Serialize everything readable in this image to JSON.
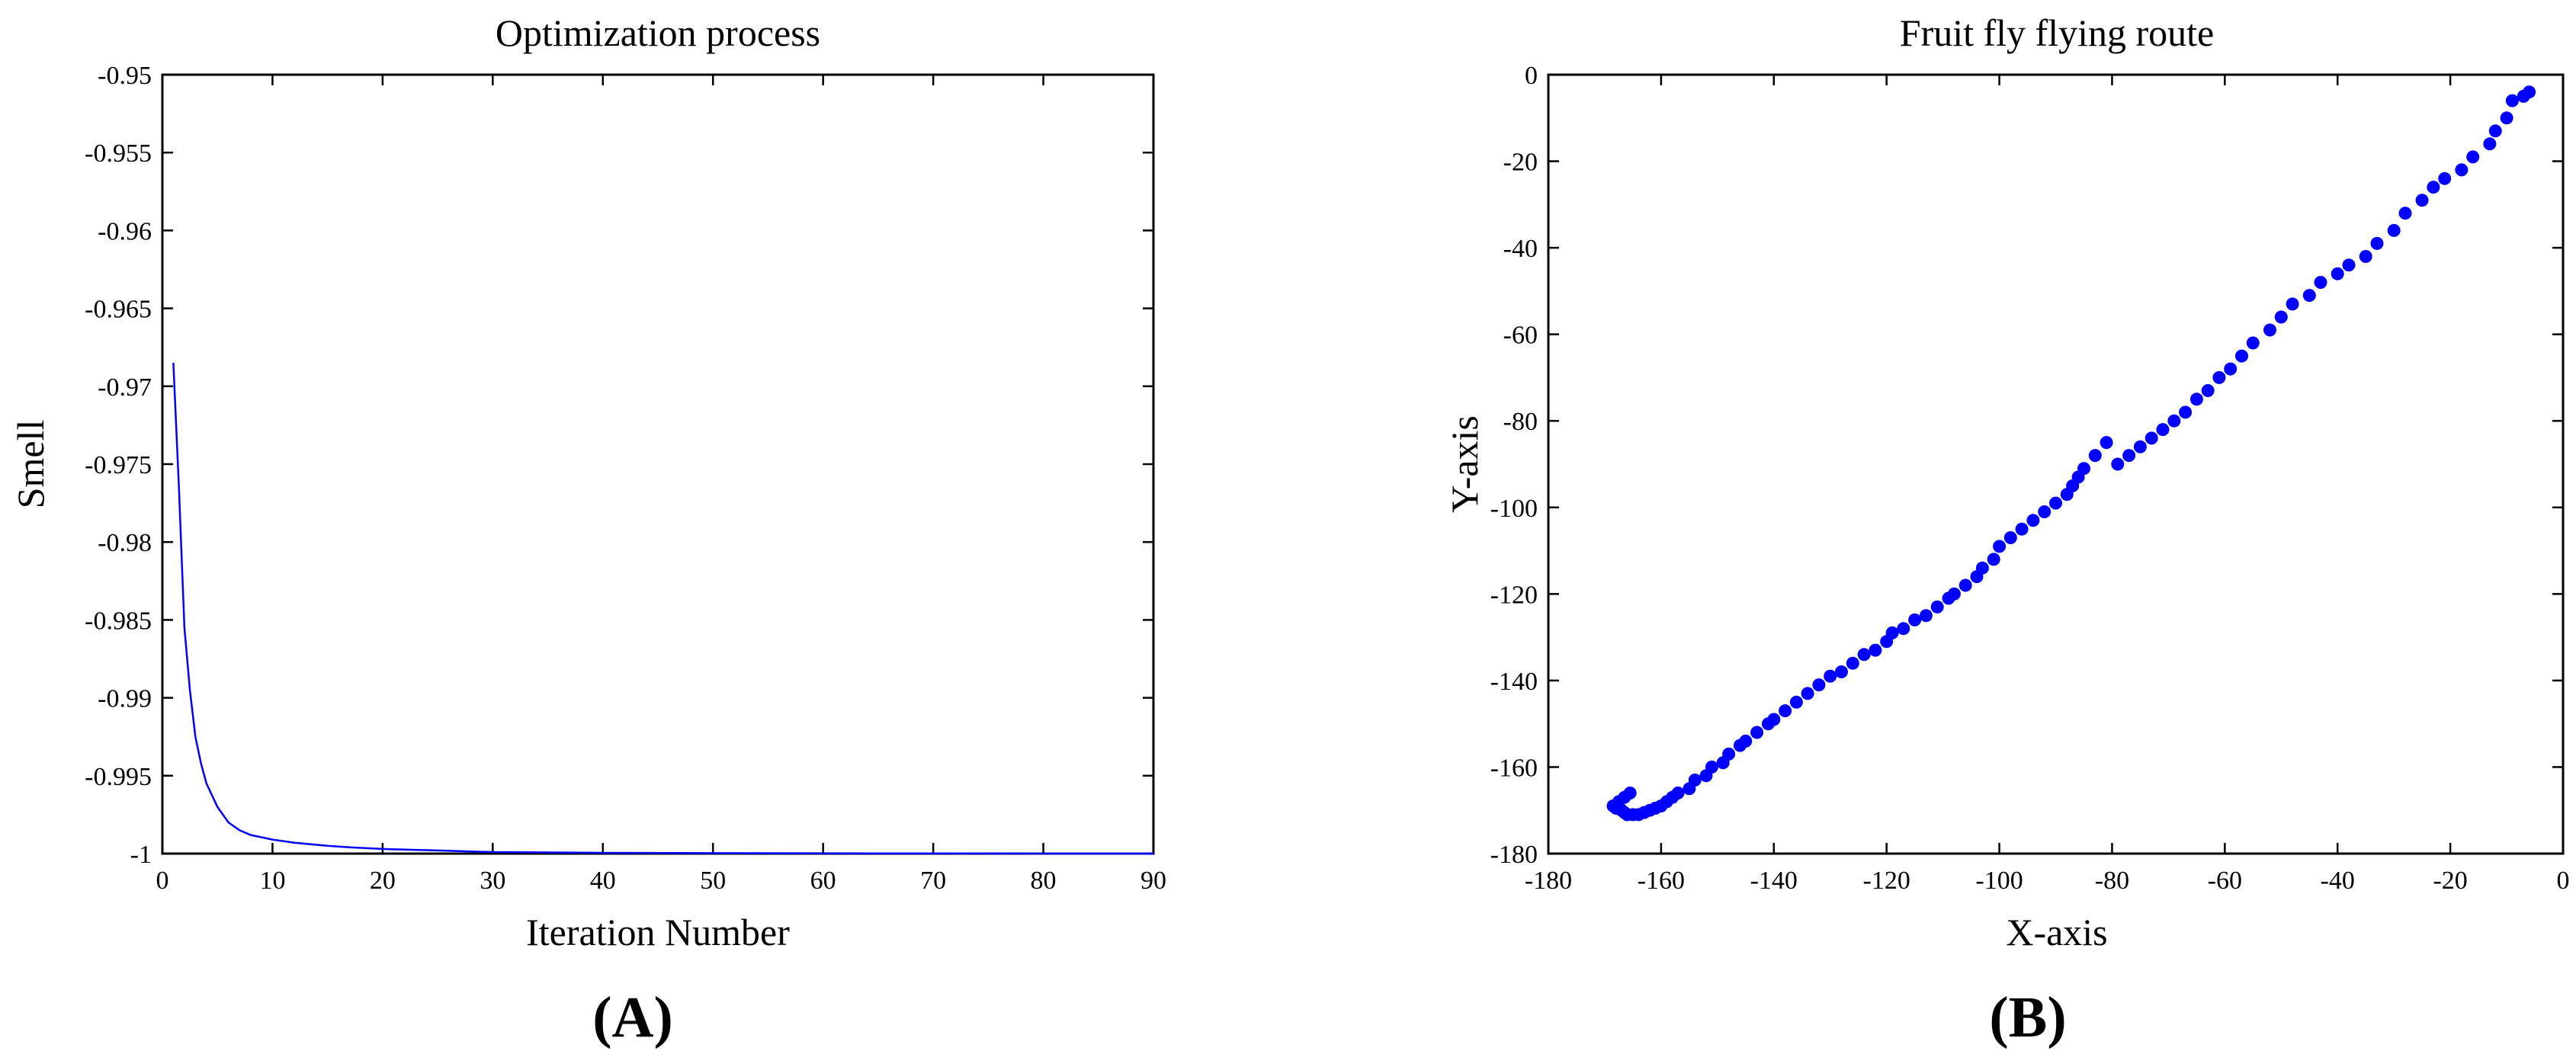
{
  "chart_data": [
    {
      "type": "line",
      "panel_label": "A",
      "title": "Optimization process",
      "xlabel": "Iteration Number",
      "ylabel": "Smell",
      "xlim": [
        0,
        90
      ],
      "ylim": [
        -1,
        -0.95
      ],
      "xticks": [
        0,
        10,
        20,
        30,
        40,
        50,
        60,
        70,
        80,
        90
      ],
      "xtick_labels": [
        "0",
        "10",
        "20",
        "30",
        "40",
        "50",
        "60",
        "70",
        "80",
        "90"
      ],
      "yticks": [
        -0.95,
        -0.955,
        -0.96,
        -0.965,
        -0.97,
        -0.975,
        -0.98,
        -0.985,
        -0.99,
        -0.995,
        -1
      ],
      "ytick_labels": [
        "-0.95",
        "-0.955",
        "-0.96",
        "-0.965",
        "-0.97",
        "-0.975",
        "-0.98",
        "-0.985",
        "-0.99",
        "-0.995",
        "-1"
      ],
      "grid": false,
      "series": [
        {
          "color": "#0000ff",
          "x": [
            1,
            1.5,
            2,
            2.5,
            3,
            3.5,
            4,
            5,
            6,
            7,
            8,
            10,
            12,
            15,
            17,
            20,
            25,
            30,
            40,
            50,
            60,
            70,
            80,
            90
          ],
          "y": [
            -0.9685,
            -0.9765,
            -0.9855,
            -0.9895,
            -0.9925,
            -0.9942,
            -0.9955,
            -0.997,
            -0.998,
            -0.9985,
            -0.9988,
            -0.9991,
            -0.9993,
            -0.9995,
            -0.9996,
            -0.9997,
            -0.9998,
            -0.9999,
            -0.99995,
            -0.99997,
            -0.99998,
            -0.99999,
            -1.0,
            -1.0
          ]
        }
      ]
    },
    {
      "type": "scatter",
      "panel_label": "B",
      "title": "Fruit fly flying route",
      "xlabel": "X-axis",
      "ylabel": "Y-axis",
      "xlim": [
        -180,
        0
      ],
      "ylim": [
        -180,
        0
      ],
      "xticks": [
        -180,
        -160,
        -140,
        -120,
        -100,
        -80,
        -60,
        -40,
        -20,
        0
      ],
      "xtick_labels": [
        "-180",
        "-160",
        "-140",
        "-120",
        "-100",
        "-80",
        "-60",
        "-40",
        "-20",
        "0"
      ],
      "yticks": [
        0,
        -20,
        -40,
        -60,
        -80,
        -100,
        -120,
        -140,
        -160,
        -180
      ],
      "ytick_labels": [
        "0",
        "-20",
        "-40",
        "-60",
        "-80",
        "-100",
        "-120",
        "-140",
        "-160",
        "-180"
      ],
      "grid": false,
      "series": [
        {
          "color": "#0000ff",
          "x": [
            -6,
            -7,
            -9,
            -10,
            -12,
            -13,
            -16,
            -18,
            -21,
            -23,
            -25,
            -28,
            -30,
            -33,
            -35,
            -38,
            -40,
            -43,
            -45,
            -48,
            -50,
            -52,
            -55,
            -57,
            -59,
            -61,
            -63,
            -65,
            -67,
            -69,
            -71,
            -73,
            -75,
            -77,
            -79,
            -81,
            -83,
            -85,
            -86,
            -87,
            -88,
            -90,
            -92,
            -94,
            -96,
            -98,
            -100,
            -101,
            -103,
            -104,
            -106,
            -108,
            -109,
            -111,
            -113,
            -115,
            -117,
            -119,
            -120,
            -122,
            -124,
            -126,
            -128,
            -130,
            -132,
            -134,
            -136,
            -138,
            -140,
            -141,
            -143,
            -145,
            -146,
            -148,
            -149,
            -151,
            -152,
            -154,
            -155,
            -157,
            -158,
            -159,
            -160,
            -161,
            -162,
            -163,
            -164,
            -165,
            -166,
            -166.5,
            -167,
            -168,
            -168.5,
            -167.5,
            -166.5,
            -165.5
          ],
          "y": [
            -4,
            -5,
            -6,
            -10,
            -13,
            -16,
            -19,
            -22,
            -24,
            -26,
            -29,
            -32,
            -36,
            -39,
            -42,
            -44,
            -46,
            -48,
            -51,
            -53,
            -56,
            -59,
            -62,
            -65,
            -68,
            -70,
            -73,
            -75,
            -78,
            -80,
            -82,
            -84,
            -86,
            -88,
            -90,
            -85,
            -88,
            -91,
            -93,
            -95,
            -97,
            -99,
            -101,
            -103,
            -105,
            -107,
            -109,
            -112,
            -114,
            -116,
            -118,
            -120,
            -121,
            -123,
            -125,
            -126,
            -128,
            -129,
            -131,
            -133,
            -134,
            -136,
            -138,
            -139,
            -141,
            -143,
            -145,
            -147,
            -149,
            -150,
            -152,
            -154,
            -155,
            -157,
            -159,
            -160,
            -162,
            -163,
            -165,
            -166,
            -167,
            -168,
            -169,
            -169.5,
            -170,
            -170.5,
            -171,
            -171,
            -171,
            -170.5,
            -170,
            -169.5,
            -169,
            -168,
            -167,
            -166
          ]
        }
      ]
    }
  ]
}
